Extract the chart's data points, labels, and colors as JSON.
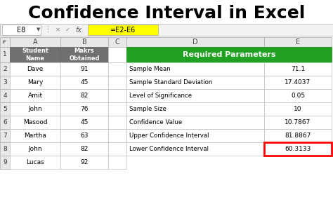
{
  "title": "Confidence Interval in Excel",
  "title_fontsize": 18,
  "title_fontweight": "bold",
  "bg_color": "#ffffff",
  "formula_bar": {
    "cell": "E8",
    "formula": "=E2-E6",
    "formula_bg": "#FFFF00"
  },
  "left_table": {
    "header": [
      "Student\nName",
      "Makrs\nObtained"
    ],
    "header_bg": "#707070",
    "header_fg": "#ffffff",
    "rows": [
      [
        "Dave",
        "91"
      ],
      [
        "Mary",
        "45"
      ],
      [
        "Amit",
        "82"
      ],
      [
        "John",
        "76"
      ],
      [
        "Masood",
        "45"
      ],
      [
        "Martha",
        "63"
      ],
      [
        "John",
        "82"
      ],
      [
        "Lucas",
        "92"
      ]
    ],
    "row_numbers": [
      2,
      3,
      4,
      5,
      6,
      7,
      8,
      9
    ]
  },
  "right_table": {
    "header": "Required Parameters",
    "header_bg": "#21a121",
    "header_fg": "#ffffff",
    "rows": [
      [
        "Sample Mean",
        "71.1"
      ],
      [
        "Sample Standard Deviation",
        "17.4037"
      ],
      [
        "Level of Significance",
        "0.05"
      ],
      [
        "Sample Size",
        "10"
      ],
      [
        "Confidence Value",
        "10.7867"
      ],
      [
        "Upper Confidence Interval",
        "81.8867"
      ],
      [
        "Lower Confidence Interval",
        "60.3133"
      ]
    ],
    "highlighted_row": 6,
    "highlight_border": "#ff0000"
  }
}
